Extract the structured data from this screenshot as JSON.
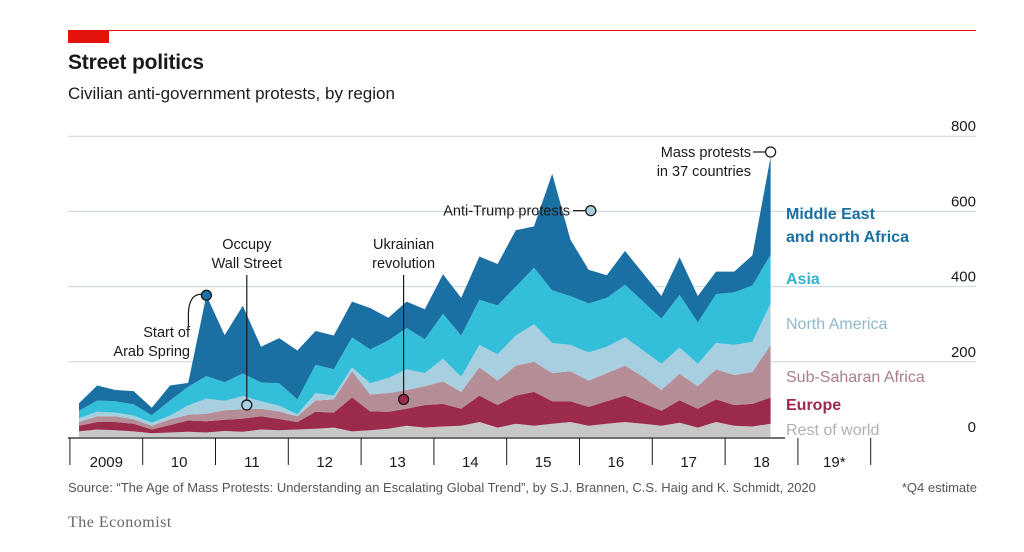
{
  "header": {
    "title": "Street politics",
    "subtitle": "Civilian anti-government protests, by region"
  },
  "footer": {
    "source": "Source: “The Age of Mass Protests: Understanding an Escalating Global Trend”, by S.J. Brannen, C.S. Haig and K. Schmidt, 2020",
    "footnote": "*Q4 estimate",
    "brand": "The Economist"
  },
  "colors": {
    "Middle East and north Africa": "#1a6fa3",
    "Asia": "#33bfd9",
    "North America": "#a8cfe0",
    "Sub-Saharan Africa": "#b48d97",
    "Europe": "#9b2a4b",
    "Rest of world": "#c7c7c7",
    "accent": "#e3120b"
  },
  "chart_data": {
    "type": "area",
    "stacked": true,
    "x_unit": "quarter",
    "x_start": "2009 Q1",
    "x_tick_labels": [
      "2009",
      "10",
      "11",
      "12",
      "13",
      "14",
      "15",
      "16",
      "17",
      "18",
      "19*"
    ],
    "ylim": [
      0,
      800
    ],
    "y_ticks": [
      0,
      200,
      400,
      600,
      800
    ],
    "grid": true,
    "y_axis_side": "right",
    "series": [
      {
        "name": "Rest of world",
        "values": [
          15,
          20,
          18,
          15,
          10,
          12,
          14,
          12,
          16,
          14,
          20,
          18,
          20,
          22,
          25,
          15,
          18,
          22,
          30,
          25,
          28,
          30,
          40,
          25,
          35,
          30,
          35,
          40,
          30,
          35,
          40,
          35,
          30,
          38,
          25,
          40,
          30,
          28,
          35
        ]
      },
      {
        "name": "Europe",
        "values": [
          15,
          20,
          22,
          20,
          10,
          20,
          30,
          30,
          30,
          35,
          35,
          30,
          20,
          45,
          40,
          90,
          50,
          45,
          45,
          60,
          60,
          45,
          70,
          60,
          75,
          90,
          60,
          55,
          50,
          60,
          70,
          55,
          40,
          60,
          50,
          60,
          55,
          60,
          70
        ]
      },
      {
        "name": "Sub-Saharan Africa",
        "values": [
          10,
          15,
          15,
          12,
          10,
          15,
          15,
          20,
          25,
          25,
          20,
          20,
          15,
          30,
          35,
          70,
          45,
          50,
          50,
          50,
          60,
          45,
          75,
          65,
          80,
          80,
          75,
          80,
          70,
          75,
          80,
          70,
          55,
          70,
          60,
          80,
          80,
          85,
          140
        ]
      },
      {
        "name": "North America",
        "values": [
          10,
          12,
          10,
          10,
          8,
          10,
          25,
          40,
          25,
          35,
          20,
          15,
          5,
          20,
          10,
          10,
          30,
          40,
          55,
          35,
          60,
          40,
          60,
          70,
          80,
          100,
          80,
          70,
          75,
          70,
          75,
          70,
          70,
          70,
          60,
          70,
          80,
          80,
          110
        ]
      },
      {
        "name": "Asia",
        "values": [
          20,
          30,
          30,
          30,
          20,
          40,
          50,
          60,
          50,
          60,
          50,
          60,
          40,
          75,
          70,
          80,
          90,
          100,
          110,
          90,
          120,
          110,
          120,
          130,
          130,
          150,
          140,
          130,
          130,
          130,
          140,
          130,
          120,
          140,
          110,
          130,
          140,
          150,
          130
        ]
      },
      {
        "name": "Middle East and north Africa",
        "values": [
          20,
          40,
          30,
          35,
          20,
          40,
          10,
          215,
          125,
          180,
          95,
          120,
          130,
          90,
          90,
          95,
          110,
          60,
          70,
          80,
          105,
          100,
          115,
          110,
          150,
          110,
          310,
          150,
          90,
          60,
          90,
          75,
          60,
          100,
          70,
          60,
          55,
          80,
          260
        ]
      }
    ]
  },
  "labels": {
    "y_ticks": [
      "0",
      "200",
      "400",
      "600",
      "800"
    ],
    "series_labels": [
      {
        "line1": "Middle East",
        "line2": "and north Africa"
      },
      {
        "line1": "Asia"
      },
      {
        "line1": "North America"
      },
      {
        "line1": "Sub-Saharan Africa"
      },
      {
        "line1": "Europe"
      },
      {
        "line1": "Rest of world"
      }
    ],
    "annotations": [
      {
        "key": "arab_spring",
        "lines": [
          "Start of",
          "Arab Spring"
        ]
      },
      {
        "key": "occupy",
        "lines": [
          "Occupy",
          "Wall Street"
        ]
      },
      {
        "key": "ukraine",
        "lines": [
          "Ukrainian",
          "revolution"
        ]
      },
      {
        "key": "trump",
        "lines": [
          "Anti-Trump protests"
        ]
      },
      {
        "key": "mass",
        "lines": [
          "Mass protests",
          "in 37 countries"
        ]
      }
    ]
  }
}
